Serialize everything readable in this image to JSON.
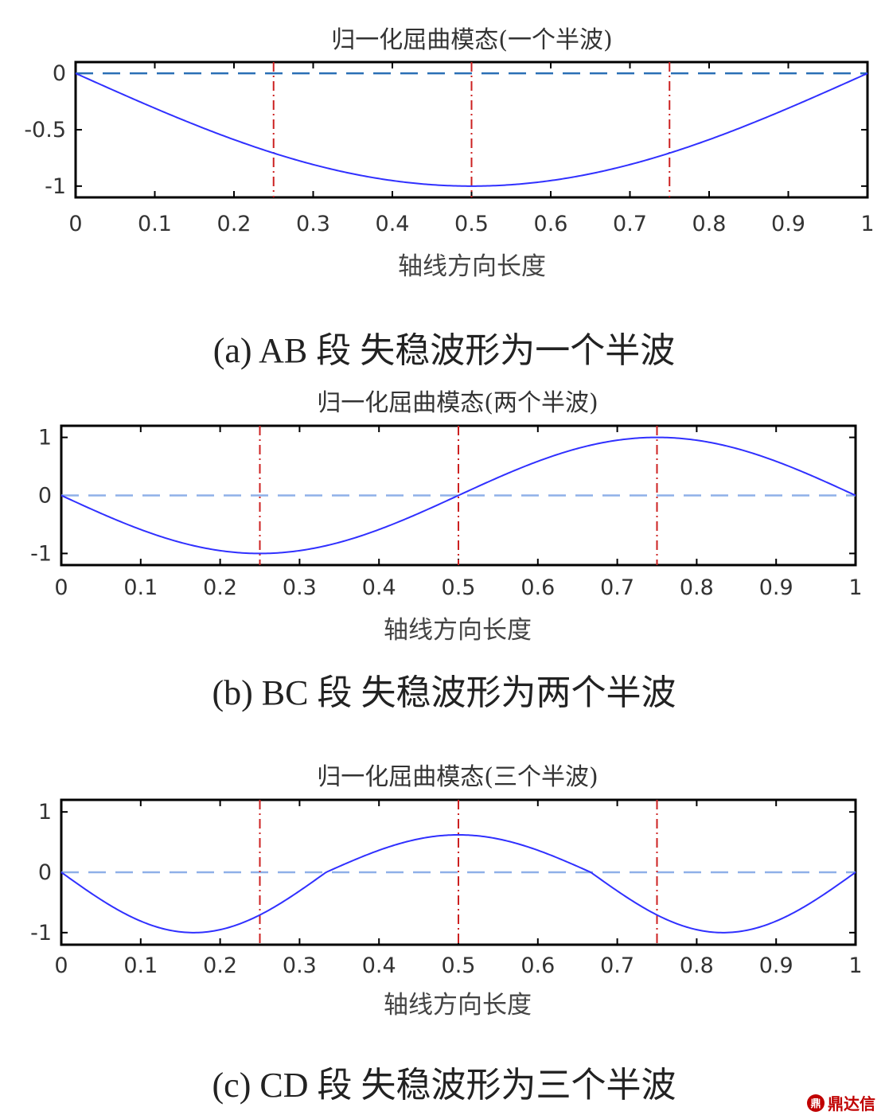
{
  "chart_data": [
    {
      "type": "line",
      "title": "归一化屈曲模态(一个半波)",
      "xlabel": "轴线方向长度",
      "ylabel": "",
      "xlim": [
        0,
        1
      ],
      "ylim": [
        -1.1,
        0.1
      ],
      "xticks": [
        "0",
        "0.1",
        "0.2",
        "0.3",
        "0.4",
        "0.5",
        "0.6",
        "0.7",
        "0.8",
        "0.9",
        "1"
      ],
      "yticks": [
        {
          "value": 0,
          "label": "0"
        },
        {
          "value": -0.5,
          "label": "-0.5"
        },
        {
          "value": -1,
          "label": "-1"
        }
      ],
      "series": [
        {
          "function": "-sin(pi*x)",
          "x": [
            0,
            0.25,
            0.5,
            0.75,
            1
          ],
          "values": [
            0,
            -0.71,
            -1,
            -0.71,
            0
          ]
        }
      ],
      "baseline": 0,
      "vlines": [
        0.25,
        0.5,
        0.75
      ],
      "caption": "(a)  AB 段  失稳波形为一个半波"
    },
    {
      "type": "line",
      "title": "归一化屈曲模态(两个半波)",
      "xlabel": "轴线方向长度",
      "ylabel": "",
      "xlim": [
        0,
        1
      ],
      "ylim": [
        -1.2,
        1.2
      ],
      "xticks": [
        "0",
        "0.1",
        "0.2",
        "0.3",
        "0.4",
        "0.5",
        "0.6",
        "0.7",
        "0.8",
        "0.9",
        "1"
      ],
      "yticks": [
        {
          "value": 1,
          "label": "1"
        },
        {
          "value": 0,
          "label": "0"
        },
        {
          "value": -1,
          "label": "-1"
        }
      ],
      "series": [
        {
          "function": "-sin(2*pi*x)",
          "x": [
            0,
            0.25,
            0.5,
            0.75,
            1
          ],
          "values": [
            0,
            -1,
            0,
            1,
            0
          ]
        }
      ],
      "baseline": 0,
      "vlines": [
        0.25,
        0.5,
        0.75
      ],
      "caption": "(b)  BC 段  失稳波形为两个半波"
    },
    {
      "type": "line",
      "title": "归一化屈曲模态(三个半波)",
      "xlabel": "轴线方向长度",
      "ylabel": "",
      "xlim": [
        0,
        1
      ],
      "ylim": [
        -1.2,
        1.2
      ],
      "xticks": [
        "0",
        "0.1",
        "0.2",
        "0.3",
        "0.4",
        "0.5",
        "0.6",
        "0.7",
        "0.8",
        "0.9",
        "1"
      ],
      "yticks": [
        {
          "value": 1,
          "label": "1"
        },
        {
          "value": 0,
          "label": "0"
        },
        {
          "value": -1,
          "label": "-1"
        }
      ],
      "series": [
        {
          "function": "-sin(3*pi*x)/0.96*0.6-ish",
          "x": [
            0,
            0.143,
            0.25,
            0.333,
            0.5,
            0.667,
            0.75,
            0.857,
            1
          ],
          "values": [
            0,
            -1,
            -0.58,
            0,
            0.62,
            0,
            -0.58,
            -1,
            0
          ]
        }
      ],
      "baseline": 0,
      "vlines": [
        0.25,
        0.5,
        0.75
      ],
      "caption": "(c)  CD 段  失稳波形为三个半波"
    }
  ],
  "colors": {
    "curve": "#3030ff",
    "baseline_a": "#2a6fb5",
    "baseline_bc": "#8fb0e8",
    "vline": "#cc2020",
    "axes": "#000000"
  },
  "watermark": {
    "text": "鼎达信",
    "icon": "logo-icon"
  }
}
